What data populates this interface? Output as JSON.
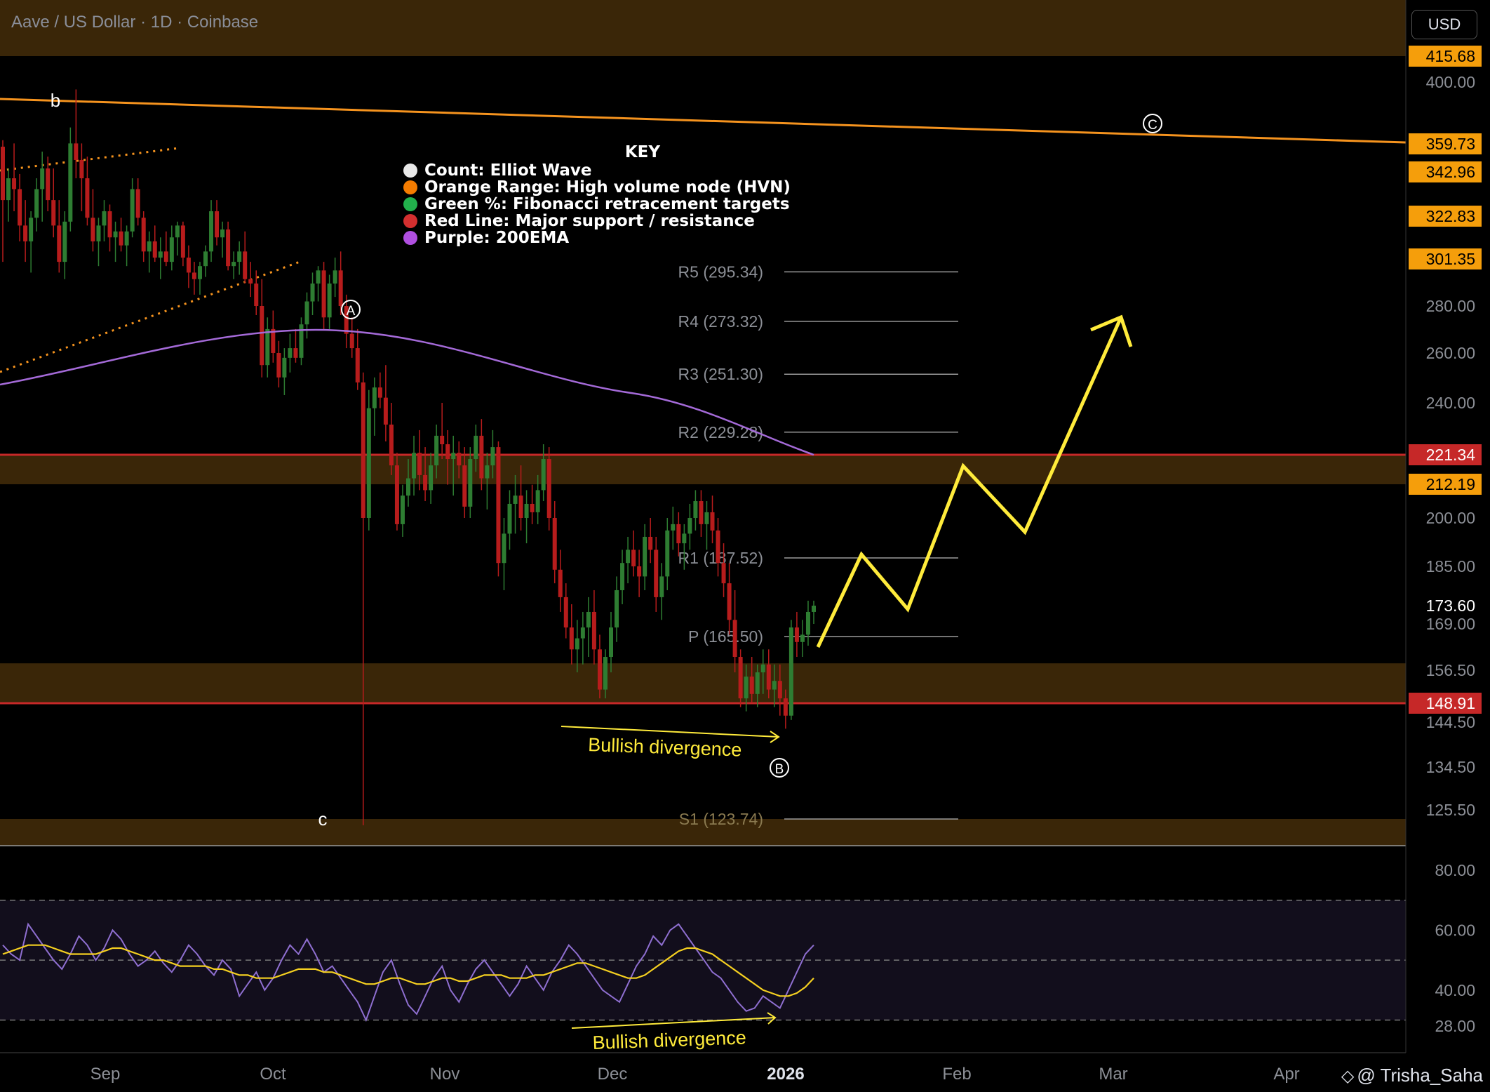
{
  "header": {
    "symbol_title": "Aave / US Dollar · 1D · Coinbase",
    "currency": "USD"
  },
  "watermark": {
    "text": "@ Trisha_Saha"
  },
  "legend": {
    "title": "KEY",
    "items": [
      {
        "label": "Count: Elliot Wave",
        "color": "#e8e8e8"
      },
      {
        "label": "Orange Range: High volume node (HVN)",
        "color": "#f57c00"
      },
      {
        "label": "Green %: Fibonacci retracement targets",
        "color": "#22b14c"
      },
      {
        "label": "Red Line: Major support / resistance",
        "color": "#d32f2f"
      },
      {
        "label": "Purple: 200EMA",
        "color": "#b04fe0"
      }
    ]
  },
  "colors": {
    "up": "#2e7d32",
    "down": "#b71c1c",
    "hvn": "#3a2608",
    "hvn_label": "#f59e0b",
    "red_line": "#c62828",
    "ema": "#a46ad8",
    "projection": "#ffeb3b",
    "trendline": "#f5931e",
    "rsi": "#8f6fd1",
    "rsi_ma": "#f5d020"
  },
  "chart_data": [
    {
      "type": "candlestick",
      "title": "Aave / US Dollar · 1D · Coinbase",
      "y_axis_ticks": [
        "400.00",
        "280.00",
        "260.00",
        "240.00",
        "200.00",
        "185.00",
        "169.00",
        "156.50",
        "144.50",
        "134.50",
        "125.50"
      ],
      "price_labels": [
        {
          "value": "415.68",
          "style": "hvn"
        },
        {
          "value": "359.73",
          "style": "hvn"
        },
        {
          "value": "342.96",
          "style": "hvn"
        },
        {
          "value": "322.83",
          "style": "hvn"
        },
        {
          "value": "301.35",
          "style": "hvn"
        },
        {
          "value": "221.34",
          "style": "red"
        },
        {
          "value": "212.19",
          "style": "hvn"
        },
        {
          "value": "173.60",
          "style": "current"
        },
        {
          "value": "148.91",
          "style": "red"
        }
      ],
      "x_axis_labels": [
        "Sep",
        "Oct",
        "Nov",
        "Dec",
        "2026",
        "Feb",
        "Mar",
        "Apr"
      ],
      "hvn_zones": [
        {
          "from": 415.68,
          "to": 460
        },
        {
          "from": 212.19,
          "to": 221.34
        },
        {
          "from": 148.91,
          "to": 158.3
        },
        {
          "from": 116.5,
          "to": 123.74
        }
      ],
      "support_resistance": [
        221.34,
        148.91
      ],
      "pivots": [
        {
          "label": "R5 (295.34)",
          "value": 295.34
        },
        {
          "label": "R4 (273.32)",
          "value": 273.32
        },
        {
          "label": "R3 (251.30)",
          "value": 251.3
        },
        {
          "label": "R2 (229.28)",
          "value": 229.28
        },
        {
          "label": "R1 (187.52)",
          "value": 187.52
        },
        {
          "label": "P (165.50)",
          "value": 165.5
        },
        {
          "label": "S1 (123.74)",
          "value": 123.74
        }
      ],
      "wave_labels": [
        {
          "text": "b",
          "style": "plain"
        },
        {
          "text": "A",
          "style": "circle"
        },
        {
          "text": "c",
          "style": "plain"
        },
        {
          "text": "B",
          "style": "circle"
        },
        {
          "text": "C",
          "style": "circle"
        }
      ],
      "annotations": [
        "Bullish divergence"
      ],
      "candles": [
        [
          358,
          362,
          300,
          330
        ],
        [
          330,
          345,
          320,
          340
        ],
        [
          340,
          360,
          325,
          335
        ],
        [
          335,
          342,
          310,
          318
        ],
        [
          318,
          330,
          300,
          310
        ],
        [
          310,
          325,
          295,
          322
        ],
        [
          322,
          340,
          315,
          335
        ],
        [
          335,
          355,
          320,
          345
        ],
        [
          345,
          352,
          325,
          330
        ],
        [
          330,
          345,
          312,
          318
        ],
        [
          318,
          330,
          295,
          300
        ],
        [
          300,
          325,
          292,
          320
        ],
        [
          320,
          370,
          315,
          360
        ],
        [
          360,
          395,
          340,
          350
        ],
        [
          350,
          360,
          325,
          340
        ],
        [
          340,
          352,
          318,
          322
        ],
        [
          322,
          335,
          305,
          310
        ],
        [
          310,
          322,
          298,
          318
        ],
        [
          318,
          330,
          310,
          325
        ],
        [
          325,
          328,
          305,
          312
        ],
        [
          312,
          320,
          300,
          315
        ],
        [
          315,
          322,
          305,
          308
        ],
        [
          308,
          318,
          298,
          315
        ],
        [
          315,
          340,
          312,
          335
        ],
        [
          335,
          340,
          318,
          322
        ],
        [
          322,
          325,
          300,
          305
        ],
        [
          305,
          315,
          295,
          310
        ],
        [
          310,
          318,
          300,
          302
        ],
        [
          302,
          312,
          292,
          305
        ],
        [
          305,
          315,
          298,
          300
        ],
        [
          300,
          318,
          296,
          312
        ],
        [
          312,
          320,
          303,
          318
        ],
        [
          318,
          320,
          298,
          302
        ],
        [
          302,
          308,
          288,
          295
        ],
        [
          295,
          300,
          285,
          292
        ],
        [
          292,
          300,
          285,
          298
        ],
        [
          298,
          308,
          293,
          305
        ],
        [
          305,
          330,
          300,
          325
        ],
        [
          325,
          330,
          308,
          312
        ],
        [
          312,
          320,
          302,
          316
        ],
        [
          316,
          320,
          296,
          298
        ],
        [
          298,
          305,
          292,
          300
        ],
        [
          300,
          310,
          294,
          305
        ],
        [
          305,
          315,
          290,
          292
        ],
        [
          292,
          300,
          284,
          290
        ],
        [
          290,
          296,
          276,
          280
        ],
        [
          280,
          292,
          250,
          255
        ],
        [
          255,
          275,
          250,
          270
        ],
        [
          270,
          278,
          256,
          260
        ],
        [
          260,
          265,
          246,
          250
        ],
        [
          250,
          262,
          243,
          258
        ],
        [
          258,
          268,
          252,
          262
        ],
        [
          262,
          270,
          256,
          258
        ],
        [
          258,
          275,
          255,
          272
        ],
        [
          272,
          286,
          266,
          282
        ],
        [
          282,
          295,
          276,
          290
        ],
        [
          290,
          298,
          282,
          296
        ],
        [
          296,
          300,
          270,
          275
        ],
        [
          275,
          294,
          270,
          290
        ],
        [
          290,
          302,
          284,
          296
        ],
        [
          296,
          305,
          276,
          280
        ],
        [
          280,
          285,
          262,
          268
        ],
        [
          268,
          275,
          258,
          262
        ],
        [
          262,
          270,
          245,
          248
        ],
        [
          248,
          252,
          122,
          200
        ],
        [
          200,
          245,
          196,
          238
        ],
        [
          238,
          250,
          228,
          246
        ],
        [
          246,
          252,
          238,
          242
        ],
        [
          242,
          255,
          226,
          232
        ],
        [
          232,
          240,
          215,
          218
        ],
        [
          218,
          222,
          196,
          198
        ],
        [
          198,
          212,
          194,
          208
        ],
        [
          208,
          220,
          204,
          214
        ],
        [
          214,
          228,
          208,
          222
        ],
        [
          222,
          230,
          210,
          215
        ],
        [
          215,
          224,
          206,
          210
        ],
        [
          210,
          222,
          205,
          218
        ],
        [
          218,
          232,
          214,
          228
        ],
        [
          228,
          240,
          220,
          225
        ],
        [
          225,
          230,
          212,
          220
        ],
        [
          220,
          228,
          208,
          222
        ],
        [
          222,
          226,
          214,
          218
        ],
        [
          218,
          224,
          200,
          204
        ],
        [
          204,
          224,
          200,
          220
        ],
        [
          220,
          232,
          216,
          228
        ],
        [
          228,
          234,
          210,
          214
        ],
        [
          214,
          222,
          203,
          218
        ],
        [
          218,
          230,
          214,
          224
        ],
        [
          224,
          226,
          182,
          186
        ],
        [
          186,
          200,
          178,
          195
        ],
        [
          195,
          210,
          190,
          205
        ],
        [
          205,
          215,
          195,
          208
        ],
        [
          208,
          218,
          196,
          200
        ],
        [
          200,
          210,
          192,
          205
        ],
        [
          205,
          212,
          198,
          202
        ],
        [
          202,
          215,
          198,
          210
        ],
        [
          210,
          225,
          206,
          220
        ],
        [
          220,
          224,
          196,
          200
        ],
        [
          200,
          206,
          180,
          184
        ],
        [
          184,
          190,
          172,
          176
        ],
        [
          176,
          180,
          165,
          168
        ],
        [
          168,
          174,
          158,
          162
        ],
        [
          162,
          170,
          156,
          165
        ],
        [
          165,
          172,
          158,
          168
        ],
        [
          168,
          176,
          160,
          172
        ],
        [
          172,
          178,
          158,
          162
        ],
        [
          162,
          166,
          150,
          152
        ],
        [
          152,
          162,
          150,
          160
        ],
        [
          160,
          172,
          156,
          168
        ],
        [
          168,
          182,
          164,
          178
        ],
        [
          178,
          190,
          174,
          186
        ],
        [
          186,
          194,
          180,
          190
        ],
        [
          190,
          196,
          182,
          185
        ],
        [
          185,
          190,
          176,
          182
        ],
        [
          182,
          198,
          178,
          194
        ],
        [
          194,
          200,
          186,
          190
        ],
        [
          190,
          194,
          172,
          176
        ],
        [
          176,
          186,
          170,
          182
        ],
        [
          182,
          200,
          178,
          196
        ],
        [
          196,
          204,
          190,
          198
        ],
        [
          198,
          202,
          188,
          192
        ],
        [
          192,
          198,
          184,
          195
        ],
        [
          195,
          205,
          190,
          200
        ],
        [
          200,
          210,
          196,
          206
        ],
        [
          206,
          210,
          194,
          198
        ],
        [
          198,
          206,
          190,
          202
        ],
        [
          202,
          208,
          192,
          196
        ],
        [
          196,
          200,
          182,
          186
        ],
        [
          186,
          192,
          176,
          180
        ],
        [
          180,
          186,
          166,
          170
        ],
        [
          170,
          178,
          156,
          160
        ],
        [
          160,
          162,
          148,
          150
        ],
        [
          150,
          158,
          147,
          155
        ],
        [
          155,
          160,
          149,
          151
        ],
        [
          151,
          158,
          148,
          156
        ],
        [
          156,
          162,
          151,
          158
        ],
        [
          158,
          162,
          150,
          152
        ],
        [
          152,
          158,
          148,
          154
        ],
        [
          154,
          158,
          146,
          150
        ],
        [
          150,
          152,
          143,
          146
        ],
        [
          146,
          170,
          145,
          168
        ],
        [
          168,
          172,
          160,
          164
        ],
        [
          164,
          170,
          160,
          166
        ],
        [
          166,
          175,
          163,
          172
        ],
        [
          172,
          175,
          169,
          173.6
        ]
      ]
    },
    {
      "type": "line",
      "title": "RSI",
      "y_axis_ticks": [
        "80.00",
        "60.00",
        "40.00",
        "28.00"
      ],
      "bands": [
        70,
        50,
        30
      ],
      "series": [
        {
          "values": [
            55,
            52,
            50,
            62,
            58,
            54,
            50,
            47,
            52,
            58,
            55,
            50,
            54,
            60,
            57,
            52,
            48,
            50,
            53,
            49,
            46,
            50,
            55,
            52,
            48,
            45,
            50,
            47,
            38,
            42,
            46,
            40,
            44,
            50,
            55,
            52,
            57,
            52,
            46,
            48,
            44,
            40,
            36,
            30,
            38,
            46,
            50,
            42,
            35,
            32,
            38,
            44,
            48,
            40,
            36,
            42,
            47,
            50,
            46,
            42,
            38,
            42,
            48,
            44,
            40,
            46,
            50,
            55,
            52,
            48,
            44,
            40,
            38,
            36,
            42,
            48,
            52,
            58,
            55,
            60,
            62,
            58,
            54,
            50,
            46,
            44,
            40,
            36,
            33,
            34,
            38,
            36,
            34,
            40,
            46,
            52,
            55
          ]
        },
        {
          "values": [
            52,
            53,
            54,
            55,
            55,
            55,
            54,
            53,
            52,
            52,
            52,
            52,
            53,
            54,
            54,
            53,
            52,
            51,
            50,
            50,
            49,
            48,
            48,
            48,
            48,
            47,
            47,
            46,
            45,
            45,
            44,
            44,
            44,
            45,
            46,
            47,
            47,
            47,
            46,
            46,
            45,
            44,
            43,
            42,
            42,
            43,
            44,
            44,
            43,
            42,
            42,
            43,
            44,
            44,
            43,
            43,
            44,
            45,
            45,
            45,
            44,
            44,
            44,
            45,
            45,
            46,
            47,
            48,
            49,
            49,
            48,
            47,
            46,
            45,
            44,
            44,
            45,
            47,
            49,
            51,
            53,
            54,
            54,
            53,
            52,
            50,
            48,
            46,
            44,
            42,
            40,
            39,
            38,
            38,
            39,
            41,
            44
          ]
        }
      ],
      "annotations": [
        "Bullish divergence"
      ]
    }
  ]
}
